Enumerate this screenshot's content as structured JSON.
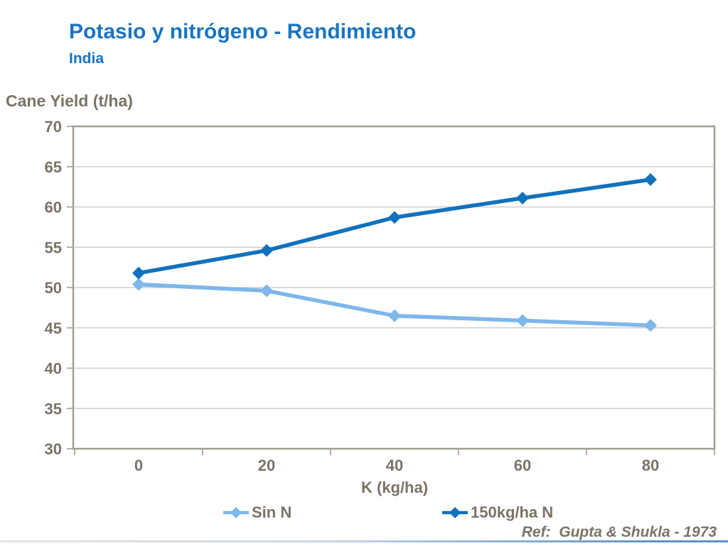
{
  "header": {
    "title": "Potasio y nitrógeno - Rendimiento",
    "subtitle": "India"
  },
  "chart_data": {
    "type": "line",
    "title": "Potasio y nitrógeno - Rendimiento (India)",
    "y_axis_title": "Cane Yield (t/ha)",
    "x_axis_title": "K (kg/ha)",
    "categories": [
      "0",
      "20",
      "40",
      "60",
      "80"
    ],
    "yticks": [
      70,
      65,
      60,
      55,
      50,
      45,
      40,
      35,
      30
    ],
    "ylim": [
      30,
      70
    ],
    "grid": true,
    "marker": "diamond",
    "legend_position": "bottom",
    "series": [
      {
        "name": "Sin N",
        "color": "#7DB7EB",
        "values": [
          50.4,
          49.6,
          46.5,
          45.9,
          45.3
        ]
      },
      {
        "name": "150kg/ha N",
        "color": "#1171BD",
        "values": [
          51.8,
          54.6,
          58.7,
          61.1,
          63.4
        ]
      }
    ]
  },
  "footer": {
    "reference": "Ref:  Gupta & Shukla - 1973"
  },
  "colors": {
    "title_blue": "#1B74BE",
    "axis_text": "#7B7365",
    "gridline": "#C9C5BE",
    "frame": "#A39D92",
    "series_light": "#7DB7EB",
    "series_dark": "#1171BD",
    "divider_left": "#E5E5E5",
    "divider_right": "#5D93C9"
  }
}
